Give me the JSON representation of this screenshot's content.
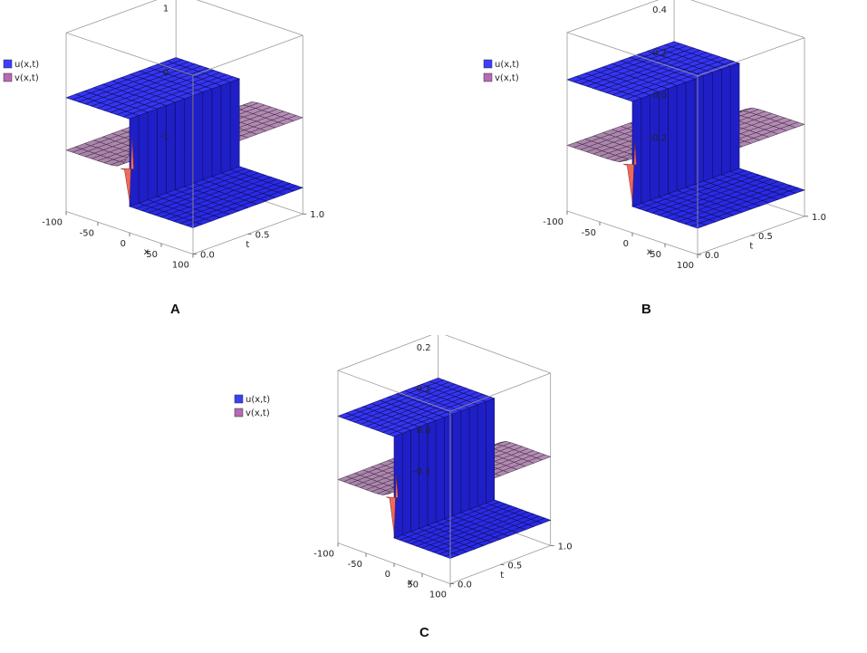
{
  "chart_data": [
    {
      "type": "surface3d",
      "panel_label": "A",
      "legend": [
        {
          "label": "u(x,t)",
          "color": "#3d3dfa"
        },
        {
          "label": "v(x,t)",
          "color": "#b46ab4"
        }
      ],
      "x_axis": {
        "label": "x",
        "ticks": [
          "-100",
          "-50",
          "0",
          "50",
          "100"
        ],
        "range": [
          -100,
          100
        ]
      },
      "t_axis": {
        "label": "t",
        "ticks": [
          "0.0",
          "0.5",
          "1.0"
        ],
        "range": [
          0,
          1
        ]
      },
      "z_axis": {
        "ticks": [
          "1",
          "0",
          "-1"
        ]
      },
      "series": [
        {
          "name": "u(x,t)",
          "left_level": 0.6,
          "right_level": -0.9
        },
        {
          "name": "v(x,t)",
          "left_level": -0.3,
          "right_level": 0.3
        }
      ]
    },
    {
      "type": "surface3d",
      "panel_label": "B",
      "legend": [
        {
          "label": "u(x,t)",
          "color": "#3d3dfa"
        },
        {
          "label": "v(x,t)",
          "color": "#b46ab4"
        }
      ],
      "x_axis": {
        "label": "x",
        "ticks": [
          "-100",
          "-50",
          "0",
          "50",
          "100"
        ],
        "range": [
          -100,
          100
        ]
      },
      "t_axis": {
        "label": "t",
        "ticks": [
          "0.0",
          "0.5",
          "1.0"
        ],
        "range": [
          0,
          1
        ]
      },
      "z_axis": {
        "ticks": [
          "0.4",
          "0.2",
          "0.0",
          "-0.2"
        ]
      },
      "series": [
        {
          "name": "u(x,t)",
          "left_level": 0.2,
          "right_level": -0.2
        },
        {
          "name": "v(x,t)",
          "left_level": -0.05,
          "right_level": 0.05
        }
      ]
    },
    {
      "type": "surface3d",
      "panel_label": "C",
      "legend": [
        {
          "label": "u(x,t)",
          "color": "#3d3dfa"
        },
        {
          "label": "v(x,t)",
          "color": "#b46ab4"
        }
      ],
      "x_axis": {
        "label": "x",
        "ticks": [
          "-100",
          "-50",
          "0",
          "50",
          "100"
        ],
        "range": [
          -100,
          100
        ]
      },
      "t_axis": {
        "label": "t",
        "ticks": [
          "0.0",
          "0.5",
          "1.0"
        ],
        "range": [
          0,
          1
        ]
      },
      "z_axis": {
        "ticks": [
          "0.2",
          "0.1",
          "0.0",
          "-0.1"
        ]
      },
      "series": [
        {
          "name": "u(x,t)",
          "left_level": 0.12,
          "right_level": -0.12
        },
        {
          "name": "v(x,t)",
          "left_level": -0.03,
          "right_level": 0.03
        }
      ]
    }
  ]
}
